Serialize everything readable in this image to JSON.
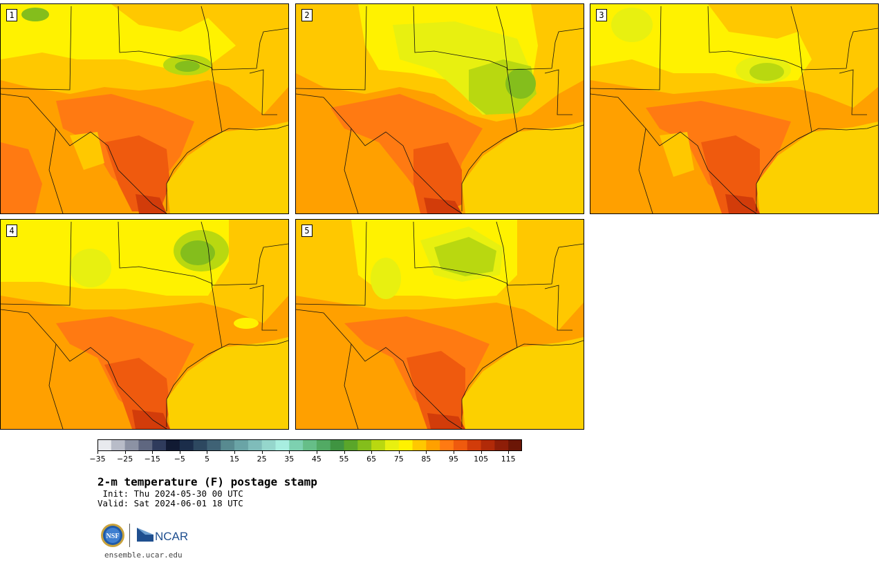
{
  "title": "2-m temperature (F) postage stamp",
  "init": " Init: Thu 2024-05-30 00 UTC",
  "valid": "Valid: Sat 2024-06-01 18 UTC",
  "website": "ensemble.ucar.edu",
  "logos": {
    "nsf_text": "NSF",
    "ncar_text": "NCAR"
  },
  "members": [
    "1",
    "2",
    "3",
    "4",
    "5"
  ],
  "colorbar": {
    "tick_labels": [
      "−35",
      "−25",
      "−15",
      "−5",
      "5",
      "15",
      "25",
      "35",
      "45",
      "55",
      "65",
      "75",
      "85",
      "95",
      "105",
      "115"
    ],
    "colors": [
      "#e8eaee",
      "#b8bcc8",
      "#8c92a4",
      "#5f6780",
      "#2f3b5c",
      "#111a33",
      "#1b2d4a",
      "#2d4860",
      "#3f6275",
      "#588a90",
      "#6aa4a6",
      "#7fbcba",
      "#95d6cc",
      "#a8eee0",
      "#7dd1b0",
      "#66be88",
      "#52aa64",
      "#3f9441",
      "#5aa62a",
      "#84be1c",
      "#b9d810",
      "#e8f010",
      "#fff200",
      "#ffc800",
      "#ffa000",
      "#ff7a12",
      "#ef5a0e",
      "#d23c0a",
      "#b12a08",
      "#8e1e08",
      "#6b1606"
    ]
  }
}
